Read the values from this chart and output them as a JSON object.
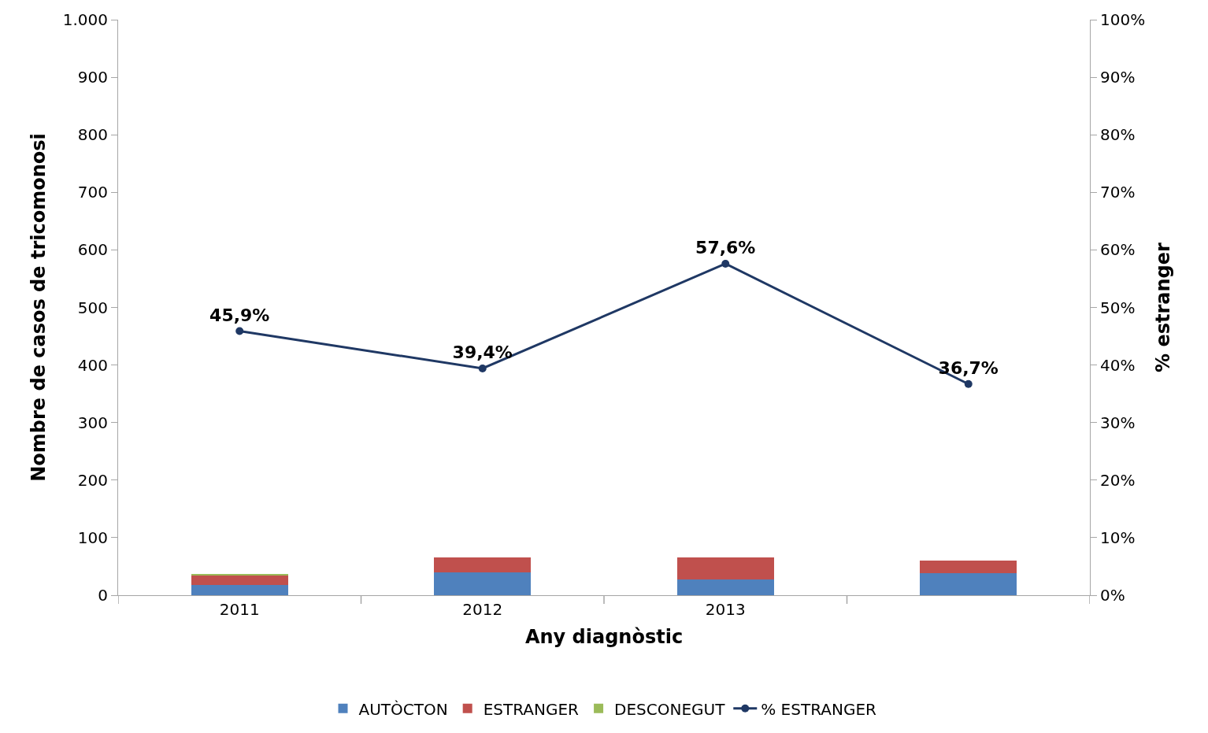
{
  "chart_data": {
    "type": "bar",
    "stacked": true,
    "xlabel": "Any diagnòstic",
    "ylabel": "Nombre de casos de tricomonosi",
    "y2label": "% estranger",
    "categories": [
      "2011",
      "2012",
      "2013",
      null
    ],
    "series": [
      {
        "name": "AUTÒCTON",
        "color": "#4f81bd",
        "values": [
          18,
          40,
          28,
          38
        ]
      },
      {
        "name": "ESTRANGER",
        "color": "#c0504d",
        "values": [
          17,
          26,
          38,
          22
        ]
      },
      {
        "name": "DESCONEGUT",
        "color": "#9bbb59",
        "values": [
          2,
          0,
          0,
          0
        ]
      },
      {
        "name": "% ESTRANGER",
        "type": "line",
        "axis": "y2",
        "color": "#1f3864",
        "marker": "circle",
        "line_style": "solid",
        "values": [
          45.9,
          39.4,
          57.6,
          36.7
        ],
        "value_labels": [
          "45,9%",
          "39,4%",
          "57,6%",
          "36,7%"
        ]
      }
    ],
    "ylim": [
      0,
      1000
    ],
    "yticks": [
      0,
      {
        "value": 100,
        "label": "100"
      },
      {
        "value": 200,
        "label": "200"
      },
      {
        "value": 300,
        "label": "300"
      },
      {
        "value": 400,
        "label": "400"
      },
      {
        "value": 500,
        "label": "500"
      },
      {
        "value": 600,
        "label": "600"
      },
      {
        "value": 700,
        "label": "700"
      },
      {
        "value": 800,
        "label": "800"
      },
      {
        "value": 900,
        "label": "900"
      },
      {
        "value": 1000,
        "label": "1.000"
      }
    ],
    "y2lim": [
      0,
      100
    ],
    "y2ticks": [
      {
        "value": 0,
        "label": "0%"
      },
      {
        "value": 10,
        "label": "10%"
      },
      {
        "value": 20,
        "label": "20%"
      },
      {
        "value": 30,
        "label": "30%"
      },
      {
        "value": 40,
        "label": "40%"
      },
      {
        "value": 50,
        "label": "50%"
      },
      {
        "value": 60,
        "label": "60%"
      },
      {
        "value": 70,
        "label": "70%"
      },
      {
        "value": 80,
        "label": "80%"
      },
      {
        "value": 90,
        "label": "90%"
      },
      {
        "value": 100,
        "label": "100%"
      }
    ],
    "legend": "bottom"
  }
}
